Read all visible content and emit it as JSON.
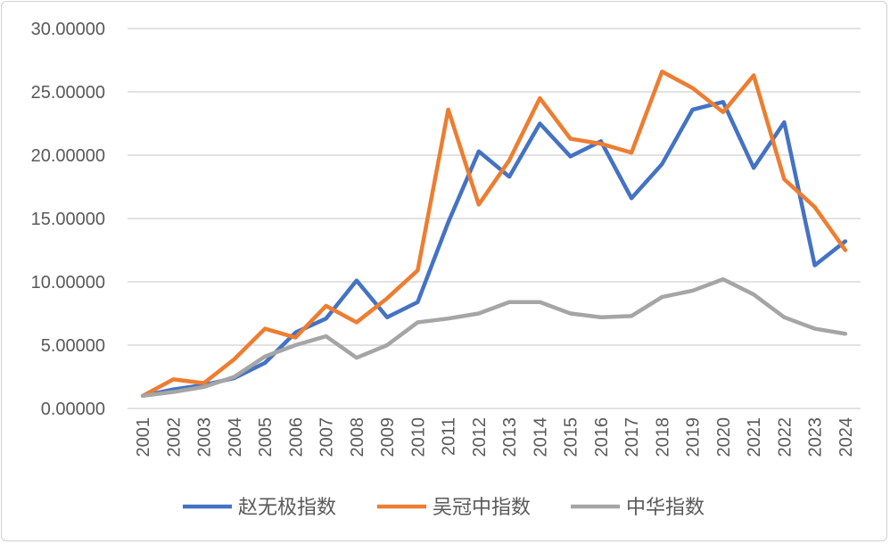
{
  "chart_data": {
    "type": "line",
    "title": "",
    "xlabel": "",
    "ylabel": "",
    "x": [
      "2001",
      "2002",
      "2003",
      "2004",
      "2005",
      "2006",
      "2007",
      "2008",
      "2009",
      "2010",
      "2011",
      "2012",
      "2013",
      "2014",
      "2015",
      "2016",
      "2017",
      "2018",
      "2019",
      "2020",
      "2021",
      "2022",
      "2023",
      "2024"
    ],
    "ylim": [
      0,
      30
    ],
    "yticks": [
      0,
      5,
      10,
      15,
      20,
      25,
      30
    ],
    "ytick_labels": [
      "0.00000",
      "5.00000",
      "10.00000",
      "15.00000",
      "20.00000",
      "25.00000",
      "30.00000"
    ],
    "grid": true,
    "legend_position": "bottom",
    "series": [
      {
        "name": "赵无极指数",
        "color": "#4472C4",
        "values": [
          1.0,
          1.5,
          1.85,
          2.4,
          3.6,
          6.0,
          7.1,
          10.1,
          7.2,
          8.4,
          14.7,
          20.3,
          18.3,
          22.5,
          19.9,
          21.1,
          16.6,
          19.3,
          23.6,
          24.2,
          19.0,
          22.6,
          11.3,
          13.2
        ]
      },
      {
        "name": "吴冠中指数",
        "color": "#ED7D31",
        "values": [
          1.0,
          2.3,
          2.0,
          3.9,
          6.3,
          5.6,
          8.1,
          6.8,
          8.7,
          10.9,
          23.6,
          16.1,
          19.6,
          24.5,
          21.3,
          20.9,
          20.2,
          26.6,
          25.3,
          23.4,
          26.3,
          18.1,
          15.9,
          12.5
        ]
      },
      {
        "name": "中华指数",
        "color": "#A5A5A5",
        "values": [
          1.0,
          1.3,
          1.7,
          2.5,
          4.1,
          5.0,
          5.7,
          4.0,
          5.0,
          6.8,
          7.1,
          7.5,
          8.4,
          8.4,
          7.5,
          7.2,
          7.3,
          8.8,
          9.3,
          10.2,
          9.0,
          7.2,
          6.3,
          5.9
        ]
      }
    ]
  }
}
